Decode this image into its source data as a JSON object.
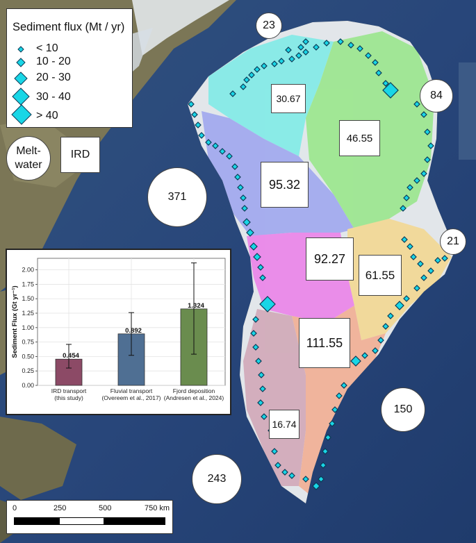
{
  "legend": {
    "title": "Sediment flux (Mt / yr)",
    "items": [
      "< 10",
      "10 - 20",
      "20 - 30",
      "30 - 40",
      "> 40"
    ]
  },
  "source_labels": {
    "meltwater": "Melt-\nwater",
    "ird": "IRD"
  },
  "meltwater_values": [
    "23",
    "84",
    "371",
    "21",
    "150",
    "243"
  ],
  "ird_values": [
    "30.67",
    "46.55",
    "95.32",
    "92.27",
    "61.55",
    "111.55",
    "16.74"
  ],
  "scale_bar": {
    "ticks": [
      "0",
      "250",
      "500",
      "750 km"
    ]
  },
  "colors": {
    "ocean": "#2b4a78",
    "land_ice": "#e8eef3",
    "terrain": "#6f6a4a",
    "glacier_marker": "#19d6e6",
    "region_NW": "#8cf2f0",
    "region_NE": "#a4ee9a",
    "region_W": "#a9b2f7",
    "region_CW": "#f18ff2",
    "region_CE": "#f8e0a0",
    "region_SE": "#f7b9a1",
    "region_SW": "#d8b3c3"
  },
  "chart_data": {
    "type": "bar",
    "categories": [
      "IRD transport\n(this study)",
      "Fluvial transport\n(Overeem et al., 2017)",
      "Fjord deposition\n(Andresen et al., 2024)"
    ],
    "values": [
      0.454,
      0.892,
      1.324
    ],
    "value_labels": [
      "0.454",
      "0.892",
      "1.324"
    ],
    "error_low": [
      0.3,
      0.52,
      0.54
    ],
    "error_high": [
      0.71,
      1.26,
      2.12
    ],
    "bar_colors": [
      "#8c4a66",
      "#4f6f93",
      "#6a8c4e"
    ],
    "ylabel": "Sediment Flux (Gt yr⁻¹)",
    "ylim": [
      0,
      2.2
    ],
    "yticks": [
      "0.00",
      "0.25",
      "0.50",
      "0.75",
      "1.00",
      "1.25",
      "1.50",
      "1.75",
      "2.00"
    ],
    "grid": true
  }
}
